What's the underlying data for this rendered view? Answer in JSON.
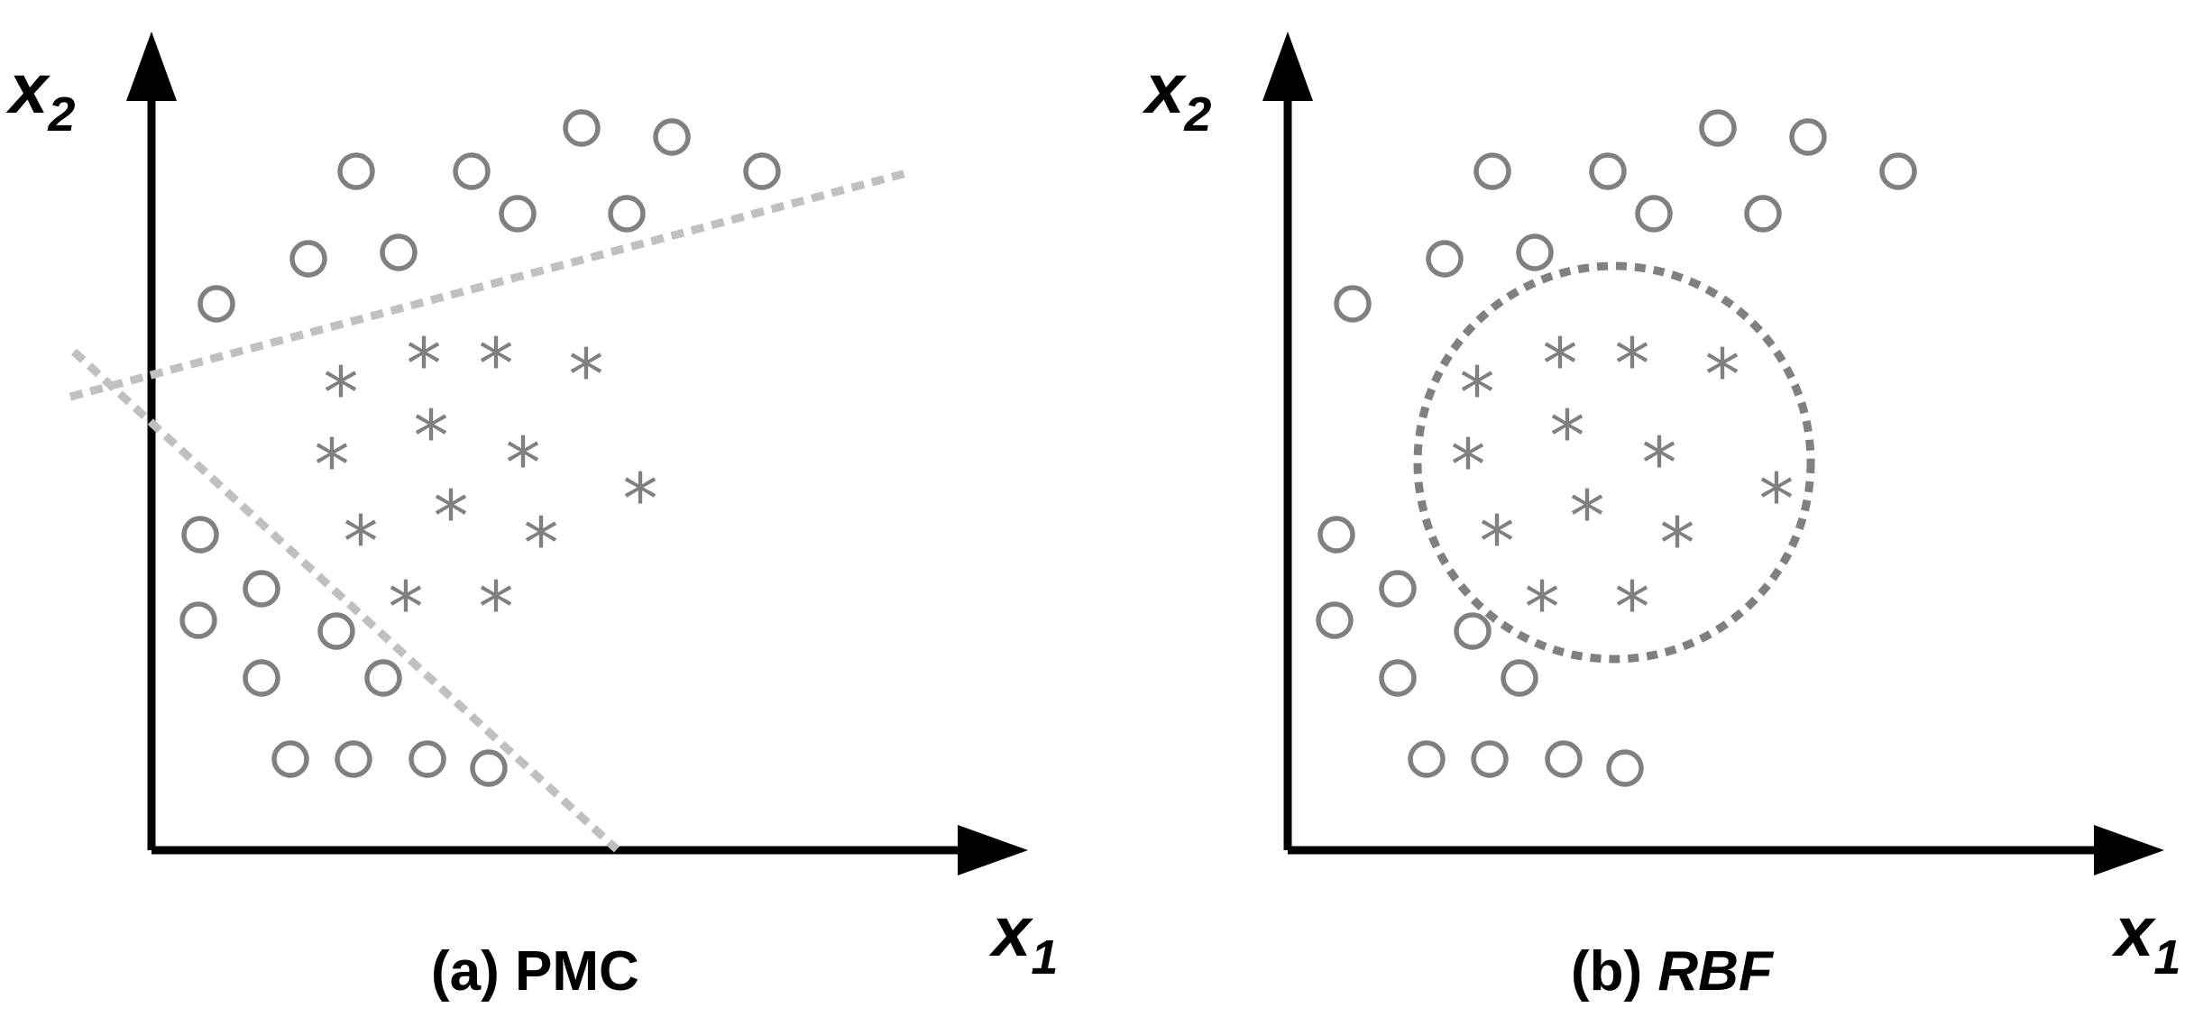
{
  "panels": [
    {
      "id": "a",
      "caption_prefix": "(a) ",
      "caption_name": "PMC",
      "caption_name_italic": false,
      "x_axis_label": {
        "var": "x",
        "sub": "1"
      },
      "y_axis_label": {
        "var": "x",
        "sub": "2"
      },
      "boundary": "linear",
      "boundary_color": "#c0c0c0"
    },
    {
      "id": "b",
      "caption_prefix": "(b) ",
      "caption_name": "RBF",
      "caption_name_italic": true,
      "x_axis_label": {
        "var": "x",
        "sub": "1"
      },
      "y_axis_label": {
        "var": "x",
        "sub": "2"
      },
      "boundary": "circular",
      "boundary_color": "#808080"
    }
  ],
  "class_markers": {
    "circle": {
      "symbol": "circle-icon",
      "color": "#808080"
    },
    "star": {
      "symbol": "*",
      "color": "#808080"
    }
  },
  "colors": {
    "axes": "#000000",
    "markers": "#808080",
    "linear_boundary": "#c0c0c0",
    "rbf_boundary": "#808080"
  }
}
